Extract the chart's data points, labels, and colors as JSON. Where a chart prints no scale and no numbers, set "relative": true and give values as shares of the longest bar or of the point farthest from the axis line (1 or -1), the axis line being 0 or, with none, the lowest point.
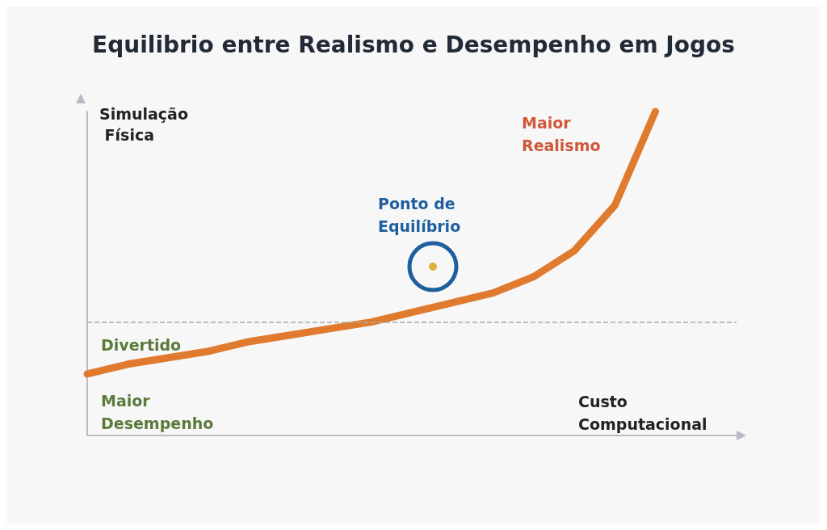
{
  "chart_data": {
    "type": "line",
    "title": "Equilibrio entre Realismo e Desempenho em Jogos",
    "xlabel": "Custo Computacional",
    "ylabel": "Simulação Física",
    "relative": true,
    "categories": [
      null,
      null,
      null,
      null,
      null,
      null,
      null,
      null,
      null,
      null,
      null,
      null,
      null,
      null,
      null,
      null,
      null
    ],
    "series": [
      {
        "color": "#e07a2e",
        "values": [
          0.19,
          0.22,
          0.24,
          0.26,
          0.29,
          0.31,
          0.33,
          0.35,
          0.38,
          0.41,
          0.44,
          0.49,
          0.57,
          0.71,
          1,
          null,
          null
        ]
      }
    ],
    "ref_lines": [
      {
        "axis": "y",
        "value": 0.35,
        "color": "#aaaaaa",
        "line_style": "dashed"
      }
    ],
    "annotations": [
      "Divertido",
      "Maior Desempenho",
      "Maior Realismo",
      "Ponto de Equilíbrio"
    ],
    "grid": false,
    "line_style": "solid"
  }
}
